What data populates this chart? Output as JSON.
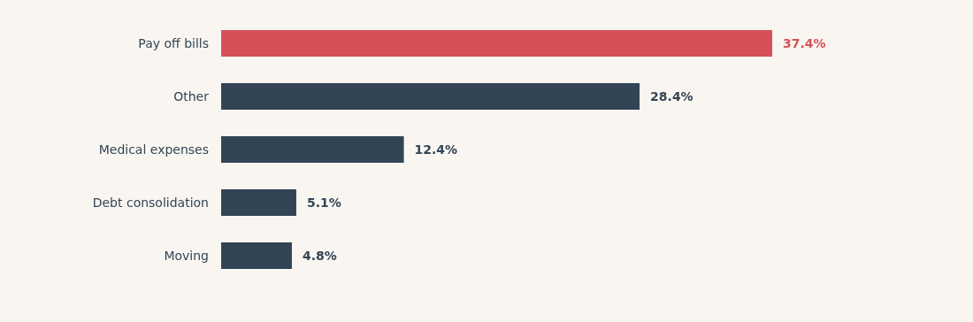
{
  "chart_data": {
    "type": "bar",
    "orientation": "horizontal",
    "categories": [
      "Pay off bills",
      "Other",
      "Medical expenses",
      "Debt consolidation",
      "Moving"
    ],
    "values": [
      37.4,
      28.4,
      12.4,
      5.1,
      4.8
    ],
    "colors": [
      "#d65157",
      "#334455",
      "#334455",
      "#334455",
      "#334455"
    ],
    "value_labels": [
      "37.4%",
      "28.4%",
      "12.4%",
      "5.1%",
      "4.8%"
    ]
  }
}
